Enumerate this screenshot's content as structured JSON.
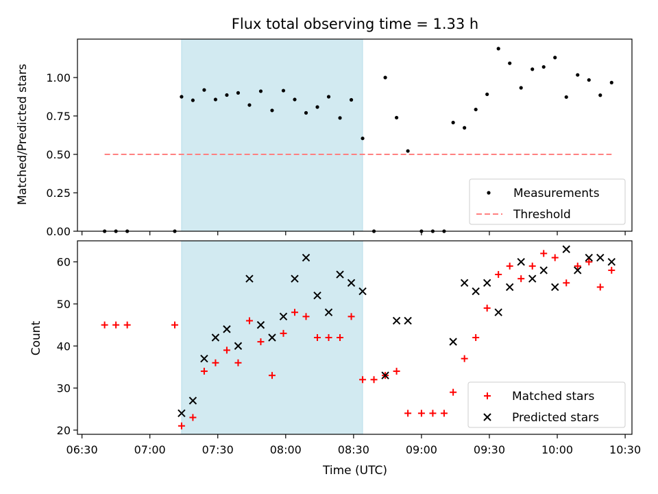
{
  "figure": {
    "title": "Flux total observing time = 1.33 h"
  },
  "chart_data": [
    {
      "type": "scatter",
      "ylabel": "Matched/Predicted stars",
      "xlabel": "",
      "ylim": [
        0,
        1.25
      ],
      "yticks": [
        0.0,
        0.25,
        0.5,
        0.75,
        1.0
      ],
      "ytick_labels": [
        "0.00",
        "0.25",
        "0.50",
        "0.75",
        "1.00"
      ],
      "shaded_interval": [
        "07:14",
        "08:34"
      ],
      "shaded_color": "#add8e6",
      "legend_position": "lower-right",
      "series": [
        {
          "name": "Measurements",
          "marker": "dot",
          "color": "#000000",
          "points": [
            [
              "06:40",
              0.0
            ],
            [
              "06:45",
              0.0
            ],
            [
              "06:50",
              0.0
            ],
            [
              "07:11",
              0.0
            ],
            [
              "07:14",
              0.875
            ],
            [
              "07:19",
              0.852
            ],
            [
              "07:24",
              0.919
            ],
            [
              "07:29",
              0.857
            ],
            [
              "07:34",
              0.886
            ],
            [
              "07:39",
              0.9
            ],
            [
              "07:44",
              0.821
            ],
            [
              "07:49",
              0.911
            ],
            [
              "07:54",
              0.786
            ],
            [
              "07:59",
              0.915
            ],
            [
              "08:04",
              0.857
            ],
            [
              "08:09",
              0.77
            ],
            [
              "08:14",
              0.808
            ],
            [
              "08:19",
              0.875
            ],
            [
              "08:24",
              0.737
            ],
            [
              "08:29",
              0.855
            ],
            [
              "08:34",
              0.604
            ],
            [
              "08:39",
              0.0
            ],
            [
              "08:44",
              1.0
            ],
            [
              "08:49",
              0.739
            ],
            [
              "08:54",
              0.522
            ],
            [
              "09:00",
              0.0
            ],
            [
              "09:05",
              0.0
            ],
            [
              "09:10",
              0.0
            ],
            [
              "09:14",
              0.707
            ],
            [
              "09:19",
              0.673
            ],
            [
              "09:24",
              0.792
            ],
            [
              "09:29",
              0.891
            ],
            [
              "09:34",
              1.188
            ],
            [
              "09:39",
              1.093
            ],
            [
              "09:44",
              0.933
            ],
            [
              "09:49",
              1.054
            ],
            [
              "09:54",
              1.069
            ],
            [
              "09:59",
              1.13
            ],
            [
              "10:04",
              0.873
            ],
            [
              "10:09",
              1.017
            ],
            [
              "10:14",
              0.984
            ],
            [
              "10:19",
              0.885
            ],
            [
              "10:24",
              0.967
            ]
          ]
        },
        {
          "name": "Threshold",
          "line": "dashed",
          "color": "#ff8080",
          "points": [
            [
              "06:40",
              0.5
            ],
            [
              "10:24",
              0.5
            ]
          ]
        }
      ]
    },
    {
      "type": "scatter",
      "ylabel": "Count",
      "xlabel": "Time (UTC)",
      "ylim": [
        19,
        65
      ],
      "yticks": [
        20,
        30,
        40,
        50,
        60
      ],
      "ytick_labels": [
        "20",
        "30",
        "40",
        "50",
        "60"
      ],
      "xlim": [
        "06:28",
        "10:33"
      ],
      "xticks": [
        "06:30",
        "07:00",
        "07:30",
        "08:00",
        "08:30",
        "09:00",
        "09:30",
        "10:00",
        "10:30"
      ],
      "shaded_interval": [
        "07:14",
        "08:34"
      ],
      "shaded_color": "#add8e6",
      "legend_position": "lower-right",
      "series": [
        {
          "name": "Matched stars",
          "marker": "plus",
          "color": "#ff0000",
          "points": [
            [
              "06:40",
              45
            ],
            [
              "06:45",
              45
            ],
            [
              "06:50",
              45
            ],
            [
              "07:11",
              45
            ],
            [
              "07:14",
              21
            ],
            [
              "07:19",
              23
            ],
            [
              "07:24",
              34
            ],
            [
              "07:29",
              36
            ],
            [
              "07:34",
              39
            ],
            [
              "07:39",
              36
            ],
            [
              "07:44",
              46
            ],
            [
              "07:49",
              41
            ],
            [
              "07:54",
              33
            ],
            [
              "07:59",
              43
            ],
            [
              "08:04",
              48
            ],
            [
              "08:09",
              47
            ],
            [
              "08:14",
              42
            ],
            [
              "08:19",
              42
            ],
            [
              "08:24",
              42
            ],
            [
              "08:29",
              47
            ],
            [
              "08:34",
              32
            ],
            [
              "08:39",
              32
            ],
            [
              "08:44",
              33
            ],
            [
              "08:49",
              34
            ],
            [
              "08:54",
              24
            ],
            [
              "09:00",
              24
            ],
            [
              "09:05",
              24
            ],
            [
              "09:10",
              24
            ],
            [
              "09:14",
              29
            ],
            [
              "09:19",
              37
            ],
            [
              "09:24",
              42
            ],
            [
              "09:29",
              49
            ],
            [
              "09:34",
              57
            ],
            [
              "09:39",
              59
            ],
            [
              "09:44",
              56
            ],
            [
              "09:49",
              59
            ],
            [
              "09:54",
              62
            ],
            [
              "09:59",
              61
            ],
            [
              "10:04",
              55
            ],
            [
              "10:09",
              59
            ],
            [
              "10:14",
              60
            ],
            [
              "10:19",
              54
            ],
            [
              "10:24",
              58
            ]
          ]
        },
        {
          "name": "Predicted stars",
          "marker": "x",
          "color": "#000000",
          "points": [
            [
              "07:14",
              24
            ],
            [
              "07:19",
              27
            ],
            [
              "07:24",
              37
            ],
            [
              "07:29",
              42
            ],
            [
              "07:34",
              44
            ],
            [
              "07:39",
              40
            ],
            [
              "07:44",
              56
            ],
            [
              "07:49",
              45
            ],
            [
              "07:54",
              42
            ],
            [
              "07:59",
              47
            ],
            [
              "08:04",
              56
            ],
            [
              "08:09",
              61
            ],
            [
              "08:14",
              52
            ],
            [
              "08:19",
              48
            ],
            [
              "08:24",
              57
            ],
            [
              "08:29",
              55
            ],
            [
              "08:34",
              53
            ],
            [
              "08:44",
              33
            ],
            [
              "08:49",
              46
            ],
            [
              "08:54",
              46
            ],
            [
              "09:14",
              41
            ],
            [
              "09:19",
              55
            ],
            [
              "09:24",
              53
            ],
            [
              "09:29",
              55
            ],
            [
              "09:34",
              48
            ],
            [
              "09:39",
              54
            ],
            [
              "09:44",
              60
            ],
            [
              "09:49",
              56
            ],
            [
              "09:54",
              58
            ],
            [
              "09:59",
              54
            ],
            [
              "10:04",
              63
            ],
            [
              "10:09",
              58
            ],
            [
              "10:14",
              61
            ],
            [
              "10:19",
              61
            ],
            [
              "10:24",
              60
            ]
          ]
        }
      ]
    }
  ]
}
